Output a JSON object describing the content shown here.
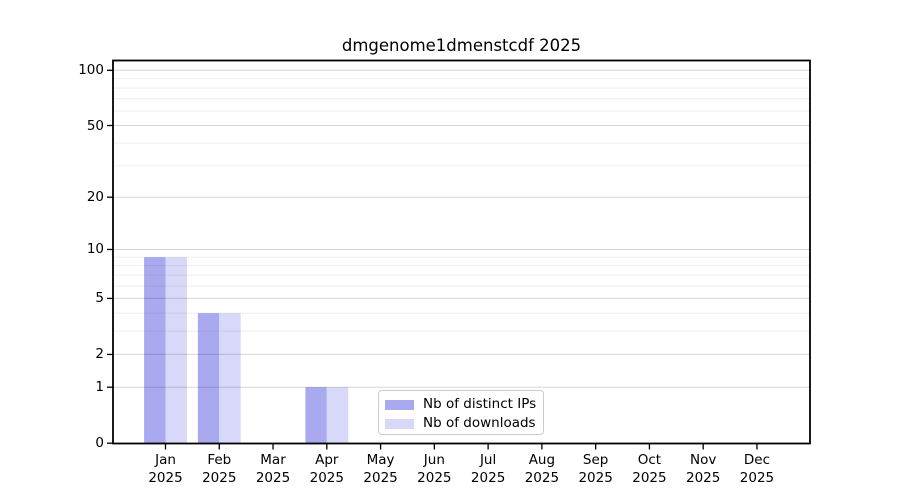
{
  "chart_data": {
    "type": "bar",
    "title": "dmgenome1dmenstcdf 2025",
    "categories": [
      "Jan",
      "Feb",
      "Mar",
      "Apr",
      "May",
      "Jun",
      "Jul",
      "Aug",
      "Sep",
      "Oct",
      "Nov",
      "Dec"
    ],
    "category_year": "2025",
    "series": [
      {
        "name": "Nb of distinct IPs",
        "color": "#a9a9f0",
        "values": [
          9,
          4,
          0,
          1,
          0,
          0,
          0,
          0,
          0,
          0,
          0,
          0
        ]
      },
      {
        "name": "Nb of downloads",
        "color": "#d8d8f8",
        "values": [
          9,
          4,
          0,
          1,
          0,
          0,
          0,
          0,
          0,
          0,
          0,
          0
        ]
      }
    ],
    "xlabel": "",
    "ylabel": "",
    "yscale": "log1p",
    "ylim": [
      0,
      113
    ],
    "yticks_major": [
      0,
      1,
      2,
      5,
      10,
      20,
      50,
      100
    ],
    "yticks_minor": [
      3,
      4,
      6,
      7,
      8,
      9,
      30,
      40,
      60,
      70,
      80,
      90
    ],
    "grid": true,
    "legend_position": "lower center"
  },
  "colors": {
    "background": "#ffffff",
    "spine": "#000000",
    "text": "#000000",
    "grid_major_hex": "#d9d9d9",
    "grid_minor_hex": "#f0f0f0",
    "legend_border": "#cccccc",
    "bar_distinct_ips": "#a9a9f0",
    "bar_downloads": "#d8d8f8"
  }
}
